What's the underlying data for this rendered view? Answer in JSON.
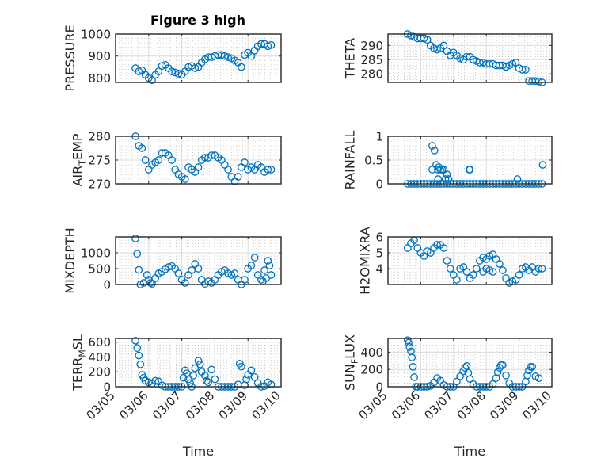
{
  "figure_title": "Figure 3 high",
  "colors": {
    "marker": "#0072BD",
    "axis": "#262626",
    "grid_major": "#dcdcdc",
    "grid_minor": "#b4b4b4",
    "bg": "#ffffff"
  },
  "chart_data": [
    {
      "type": "scatter",
      "title": "Figure 3 high",
      "ylabel": "PRESSURE",
      "xlabel": "",
      "ylim": [
        780,
        1000
      ],
      "yticks": [
        800,
        900,
        1000
      ],
      "yticklabels": [
        "800",
        "900",
        "1000"
      ],
      "xlim_days": [
        0,
        5
      ],
      "grid": true,
      "x_days": [
        0.6,
        0.7,
        0.8,
        0.9,
        1.0,
        1.1,
        1.2,
        1.3,
        1.4,
        1.5,
        1.6,
        1.7,
        1.8,
        1.9,
        2.0,
        2.1,
        2.2,
        2.3,
        2.4,
        2.5,
        2.6,
        2.7,
        2.8,
        2.9,
        3.0,
        3.1,
        3.2,
        3.3,
        3.4,
        3.5,
        3.6,
        3.7,
        3.8,
        3.9,
        4.0,
        4.1,
        4.2,
        4.3,
        4.4,
        4.5,
        4.6,
        4.7
      ],
      "y": [
        845,
        830,
        835,
        815,
        800,
        790,
        815,
        830,
        855,
        860,
        845,
        830,
        825,
        820,
        815,
        830,
        850,
        855,
        845,
        850,
        870,
        885,
        895,
        895,
        900,
        905,
        905,
        900,
        895,
        890,
        880,
        870,
        850,
        905,
        915,
        900,
        925,
        945,
        955,
        955,
        945,
        950
      ]
    },
    {
      "type": "scatter",
      "ylabel": "THETA",
      "xlabel": "",
      "ylim": [
        277,
        294
      ],
      "yticks": [
        280,
        285,
        290
      ],
      "yticklabels": [
        "280",
        "285",
        "290"
      ],
      "xlim_days": [
        0,
        5
      ],
      "grid": true,
      "x_days": [
        0.6,
        0.7,
        0.8,
        0.9,
        1.0,
        1.1,
        1.2,
        1.3,
        1.4,
        1.5,
        1.6,
        1.7,
        1.8,
        1.9,
        2.0,
        2.1,
        2.2,
        2.3,
        2.4,
        2.5,
        2.6,
        2.7,
        2.8,
        2.9,
        3.0,
        3.1,
        3.2,
        3.3,
        3.4,
        3.5,
        3.6,
        3.7,
        3.8,
        3.9,
        4.0,
        4.1,
        4.2,
        4.3,
        4.4,
        4.5,
        4.6,
        4.7
      ],
      "y": [
        294,
        293.5,
        293,
        292.5,
        292.5,
        292.5,
        292,
        290,
        289,
        288.5,
        289,
        290,
        288,
        286.5,
        287.5,
        286.5,
        285.5,
        285,
        286,
        286,
        285,
        284.5,
        284,
        284,
        283.5,
        283.5,
        283.5,
        283,
        283,
        283,
        282.5,
        283,
        283.5,
        284,
        282,
        281.5,
        281.5,
        277.5,
        277.5,
        277.5,
        277.3,
        277
      ]
    },
    {
      "type": "scatter",
      "ylabel": "AIR_TEMP",
      "xlabel": "",
      "ylim": [
        270,
        280
      ],
      "yticks": [
        270,
        275,
        280
      ],
      "yticklabels": [
        "270",
        "275",
        "280"
      ],
      "xlim_days": [
        0,
        5
      ],
      "grid": true,
      "x_days": [
        0.6,
        0.7,
        0.8,
        0.9,
        1.0,
        1.1,
        1.2,
        1.3,
        1.4,
        1.5,
        1.6,
        1.7,
        1.8,
        1.9,
        2.0,
        2.1,
        2.2,
        2.3,
        2.4,
        2.5,
        2.6,
        2.7,
        2.8,
        2.9,
        3.0,
        3.1,
        3.2,
        3.3,
        3.4,
        3.5,
        3.6,
        3.7,
        3.8,
        3.9,
        4.0,
        4.1,
        4.2,
        4.3,
        4.4,
        4.5,
        4.6,
        4.7
      ],
      "y": [
        280,
        278,
        277.5,
        275,
        273,
        274,
        274.5,
        275,
        276.5,
        276.5,
        276,
        275,
        273,
        272,
        271.5,
        271,
        273.5,
        273,
        272.5,
        273.5,
        275,
        275.5,
        275.5,
        276,
        276,
        275.5,
        275,
        274,
        273,
        271.5,
        270.5,
        271.5,
        273.5,
        274.5,
        273,
        273.5,
        273,
        274,
        273.5,
        272.5,
        273,
        273
      ]
    },
    {
      "type": "scatter",
      "ylabel": "RAINFALL",
      "xlabel": "",
      "ylim": [
        0,
        1
      ],
      "yticks": [
        0,
        0.5,
        1
      ],
      "yticklabels": [
        "0",
        "0.5",
        "1"
      ],
      "xlim_days": [
        0,
        5
      ],
      "grid": true,
      "x_days": [
        0.6,
        0.7,
        0.8,
        0.9,
        1.0,
        1.1,
        1.2,
        1.3,
        1.4,
        1.5,
        1.6,
        1.7,
        1.8,
        1.9,
        2.0,
        2.1,
        2.2,
        2.3,
        2.4,
        2.5,
        2.6,
        2.7,
        2.8,
        2.9,
        3.0,
        3.1,
        3.2,
        3.3,
        3.4,
        3.5,
        3.6,
        3.7,
        3.8,
        3.9,
        4.0,
        4.1,
        4.2,
        4.3,
        4.4,
        4.5,
        4.6,
        4.7,
        1.35,
        1.42,
        1.47,
        1.35,
        1.52,
        1.6,
        1.75,
        1.8,
        1.85,
        1.53,
        2.48,
        2.5,
        3.95,
        4.72,
        1.7,
        1.55,
        1.65
      ],
      "y": [
        0,
        0,
        0,
        0,
        0,
        0,
        0,
        0,
        0,
        0,
        0,
        0,
        0,
        0,
        0,
        0,
        0,
        0,
        0,
        0,
        0,
        0,
        0,
        0,
        0,
        0,
        0,
        0,
        0,
        0,
        0,
        0,
        0,
        0,
        0,
        0,
        0,
        0,
        0,
        0,
        0,
        0,
        0.8,
        0.7,
        0.4,
        0.3,
        0.3,
        0.3,
        0.1,
        0.2,
        0.1,
        0.1,
        0.3,
        0.3,
        0.1,
        0.4,
        0.3,
        0.35,
        0.3
      ]
    },
    {
      "type": "scatter",
      "ylabel": "MIXDEPTH",
      "xlabel": "",
      "ylim": [
        0,
        1500
      ],
      "yticks": [
        0,
        500,
        1000
      ],
      "yticklabels": [
        "0",
        "500",
        "1000"
      ],
      "xlim_days": [
        0,
        5
      ],
      "grid": true,
      "x_days": [
        0.6,
        0.65,
        0.7,
        0.75,
        0.85,
        0.95,
        1.0,
        1.05,
        1.1,
        1.2,
        1.3,
        1.4,
        1.5,
        1.6,
        1.7,
        1.8,
        1.9,
        2.0,
        2.1,
        2.2,
        2.3,
        2.4,
        2.5,
        2.6,
        2.7,
        2.8,
        2.9,
        3.0,
        3.1,
        3.2,
        3.3,
        3.4,
        3.5,
        3.6,
        3.7,
        3.8,
        3.9,
        4.0,
        4.1,
        4.2,
        4.3,
        4.4,
        4.5,
        4.6,
        4.7,
        4.65,
        4.55,
        4.45
      ],
      "y": [
        1450,
        970,
        460,
        0,
        50,
        300,
        150,
        50,
        20,
        200,
        350,
        400,
        480,
        550,
        580,
        500,
        350,
        150,
        50,
        300,
        450,
        650,
        500,
        150,
        20,
        100,
        50,
        150,
        300,
        400,
        450,
        350,
        300,
        350,
        150,
        0,
        150,
        500,
        600,
        850,
        300,
        150,
        450,
        750,
        300,
        600,
        200,
        100
      ]
    },
    {
      "type": "scatter",
      "ylabel": "H2OMIXRA",
      "xlabel": "",
      "ylim": [
        3,
        6
      ],
      "yticks": [
        4,
        5,
        6
      ],
      "yticklabels": [
        "4",
        "5",
        "6"
      ],
      "xlim_days": [
        0,
        5
      ],
      "grid": true,
      "x_days": [
        0.6,
        0.7,
        0.8,
        0.9,
        1.0,
        1.1,
        1.2,
        1.3,
        1.4,
        1.5,
        1.6,
        1.7,
        1.8,
        1.9,
        2.0,
        2.1,
        2.2,
        2.3,
        2.4,
        2.5,
        2.6,
        2.7,
        2.8,
        2.9,
        3.0,
        3.1,
        3.2,
        3.3,
        3.4,
        3.5,
        3.6,
        3.7,
        3.8,
        3.9,
        4.0,
        4.1,
        4.2,
        4.3,
        4.4,
        4.5,
        4.6,
        4.7,
        2.9,
        3.0,
        3.1,
        3.2
      ],
      "y": [
        5.3,
        5.6,
        5.8,
        5.3,
        5.0,
        4.8,
        5.1,
        5.0,
        5.3,
        5.5,
        5.5,
        5.3,
        4.5,
        4.0,
        3.6,
        3.3,
        4.0,
        4.1,
        3.8,
        3.4,
        3.6,
        4.0,
        4.5,
        4.7,
        4.6,
        4.8,
        4.9,
        4.6,
        4.3,
        3.9,
        3.4,
        3.1,
        3.2,
        3.3,
        3.6,
        4.0,
        4.1,
        3.9,
        4.1,
        3.8,
        4.0,
        4.0,
        3.8,
        4.0,
        3.9,
        3.8
      ]
    },
    {
      "type": "scatter",
      "ylabel": "TERR_MSL",
      "xlabel": "Time",
      "ylim": [
        0,
        650
      ],
      "yticks": [
        0,
        200,
        400,
        600
      ],
      "yticklabels": [
        "0",
        "200",
        "400",
        "600"
      ],
      "xlim_days": [
        0,
        5
      ],
      "xticklabels": [
        "03/05",
        "03/06",
        "03/07",
        "03/08",
        "03/09",
        "03/10"
      ],
      "grid": true,
      "x_days": [
        0.6,
        0.65,
        0.7,
        0.75,
        0.8,
        0.85,
        0.9,
        1.0,
        1.1,
        1.2,
        1.3,
        1.4,
        1.5,
        1.6,
        1.7,
        1.8,
        1.9,
        2.0,
        2.05,
        2.1,
        2.15,
        2.2,
        2.25,
        2.3,
        2.35,
        2.4,
        2.5,
        2.55,
        2.6,
        2.7,
        2.75,
        2.8,
        2.9,
        3.0,
        3.1,
        3.2,
        3.3,
        3.4,
        3.5,
        3.6,
        3.7,
        3.75,
        3.8,
        3.9,
        3.95,
        4.0,
        4.1,
        4.2,
        4.3,
        4.4,
        4.5,
        4.6,
        4.7
      ],
      "y": [
        620,
        520,
        420,
        300,
        160,
        120,
        80,
        60,
        40,
        80,
        70,
        20,
        0,
        0,
        0,
        0,
        0,
        0,
        120,
        220,
        180,
        100,
        50,
        0,
        150,
        250,
        350,
        300,
        200,
        150,
        80,
        60,
        230,
        100,
        0,
        0,
        0,
        0,
        0,
        0,
        30,
        310,
        270,
        20,
        100,
        160,
        220,
        130,
        50,
        0,
        10,
        60,
        30
      ]
    },
    {
      "type": "scatter",
      "ylabel": "SUN_FLUX",
      "xlabel": "Time",
      "ylim": [
        0,
        560
      ],
      "yticks": [
        0,
        200,
        400
      ],
      "yticklabels": [
        "0",
        "200",
        "400"
      ],
      "xlim_days": [
        0,
        5
      ],
      "xticklabels": [
        "03/05",
        "03/06",
        "03/07",
        "03/08",
        "03/09",
        "03/10"
      ],
      "grid": true,
      "x_days": [
        0.6,
        0.63,
        0.66,
        0.7,
        0.73,
        0.76,
        0.8,
        0.85,
        0.9,
        1.0,
        1.1,
        1.2,
        1.3,
        1.4,
        1.5,
        1.6,
        1.7,
        1.8,
        1.9,
        2.0,
        2.1,
        2.2,
        2.3,
        2.35,
        2.4,
        2.45,
        2.5,
        2.6,
        2.7,
        2.8,
        2.9,
        3.0,
        3.1,
        3.2,
        3.3,
        3.35,
        3.4,
        3.45,
        3.5,
        3.6,
        3.7,
        3.8,
        3.9,
        4.0,
        4.1,
        4.2,
        4.25,
        4.3,
        4.35,
        4.4,
        4.5,
        4.6
      ],
      "y": [
        540,
        510,
        460,
        410,
        340,
        230,
        110,
        0,
        0,
        0,
        0,
        0,
        10,
        50,
        100,
        70,
        20,
        0,
        0,
        0,
        60,
        120,
        180,
        220,
        240,
        160,
        90,
        30,
        0,
        0,
        0,
        0,
        0,
        30,
        100,
        170,
        220,
        250,
        250,
        130,
        40,
        0,
        0,
        0,
        0,
        60,
        130,
        190,
        230,
        230,
        120,
        100
      ]
    }
  ]
}
